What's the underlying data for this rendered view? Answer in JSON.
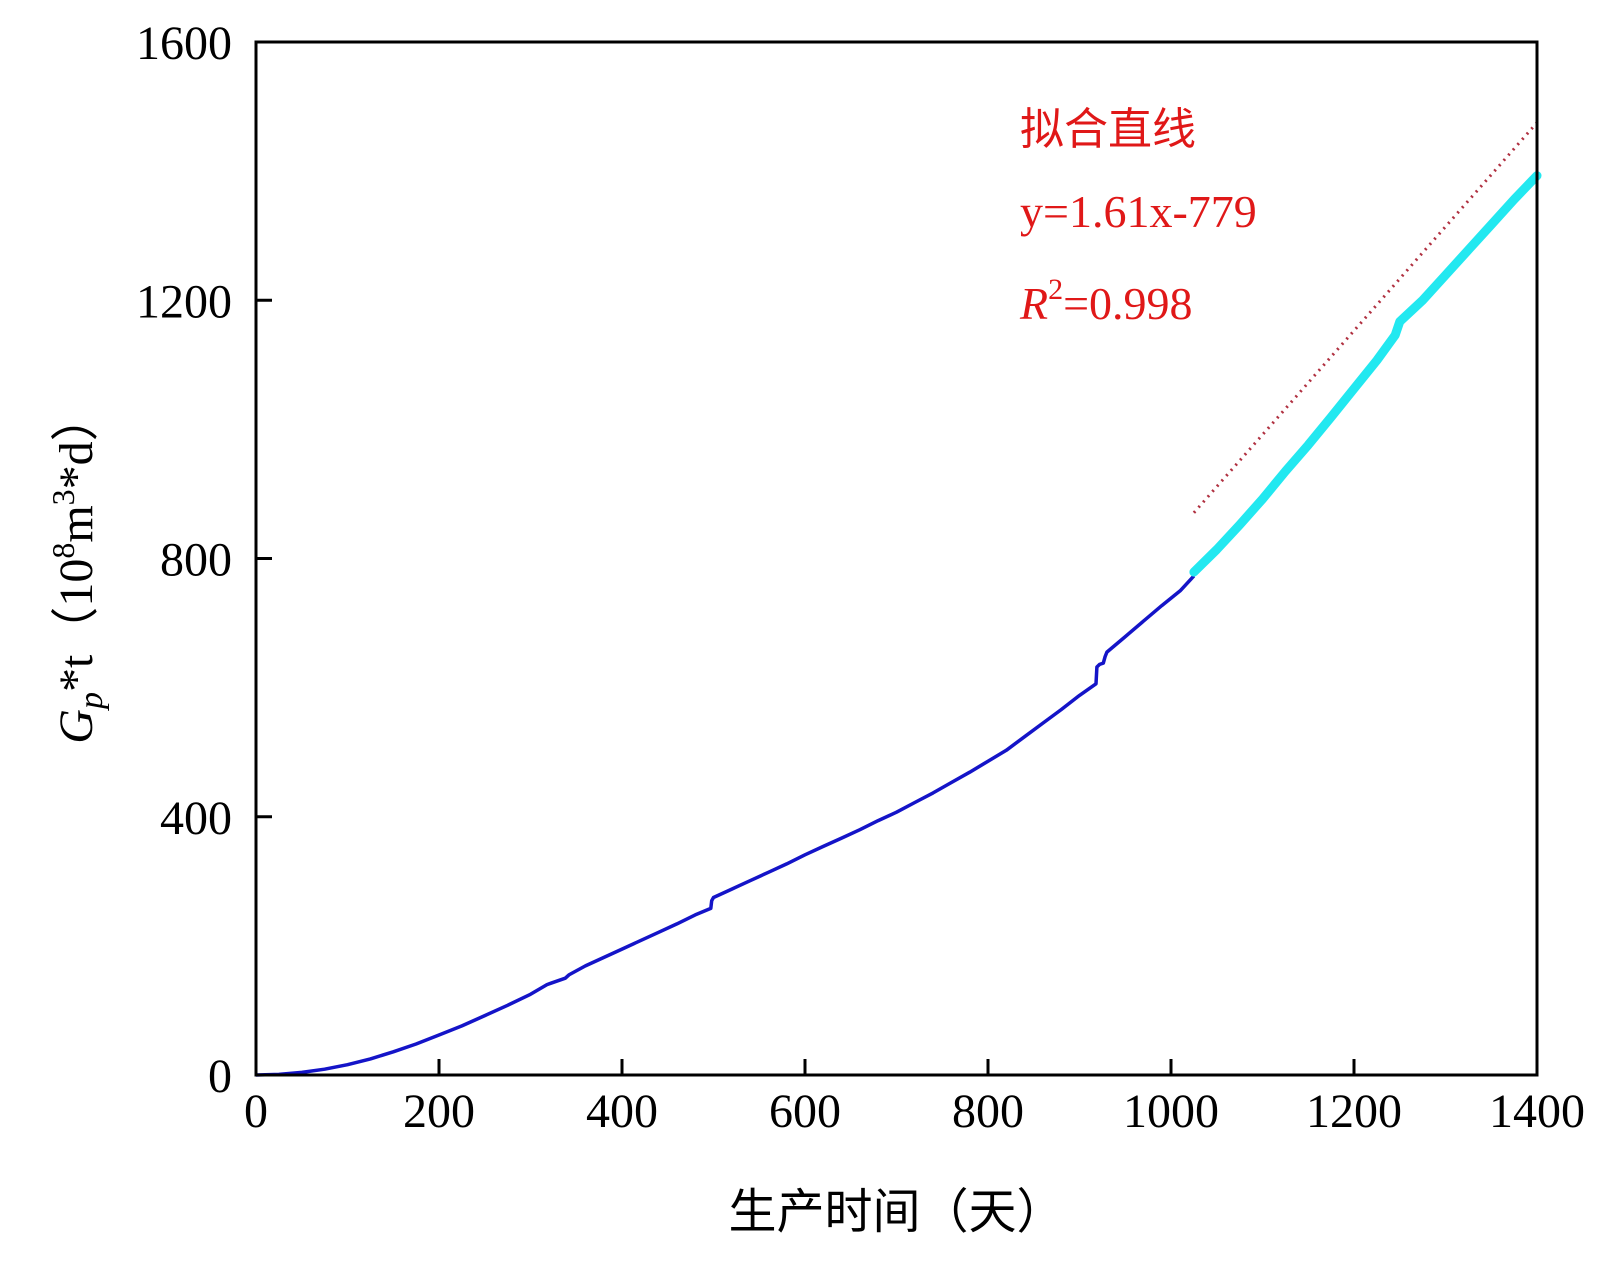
{
  "chart_data": {
    "type": "line",
    "xlabel": "生产时间（天）",
    "ylabel": {
      "G": "G",
      "p": "p",
      "rest": "*t（10",
      "exp8": "8",
      "m": "m",
      "exp3": "3",
      "tail": "*d）"
    },
    "xlim": [
      0,
      1400
    ],
    "ylim": [
      0,
      1600
    ],
    "x_ticks": [
      "0",
      "200",
      "400",
      "600",
      "800",
      "1000",
      "1200",
      "1400"
    ],
    "y_ticks": [
      "0",
      "400",
      "800",
      "1200",
      "1600"
    ],
    "grid": false,
    "annotations": {
      "title": "拟合直线",
      "equation": "y=1.61x-779",
      "r2_label": "R",
      "r2_exp": "2",
      "r2_value": "=0.998"
    },
    "colors": {
      "main": "#1414c8",
      "fit_segment": "#22e8f0",
      "fit_line": "#b03040",
      "annotation": "#e01818"
    },
    "series": [
      {
        "style": "solid",
        "x": [
          0,
          25,
          50,
          75,
          100,
          125,
          150,
          175,
          200,
          225,
          250,
          275,
          300,
          318,
          322,
          338,
          342,
          360,
          380,
          400,
          420,
          440,
          460,
          480,
          497,
          498,
          500,
          520,
          540,
          560,
          580,
          600,
          620,
          640,
          660,
          680,
          700,
          720,
          740,
          760,
          780,
          800,
          820,
          840,
          860,
          880,
          900,
          918,
          919,
          922,
          926,
          928,
          930,
          950,
          970,
          990,
          1010,
          1025
        ],
        "y": [
          0,
          1,
          4,
          9,
          16,
          25,
          36,
          48,
          62,
          76,
          92,
          108,
          125,
          140,
          142,
          150,
          155,
          169,
          182,
          195,
          208,
          221,
          234,
          248,
          258,
          270,
          275,
          288,
          301,
          314,
          327,
          341,
          354,
          367,
          380,
          394,
          407,
          422,
          437,
          453,
          469,
          486,
          503,
          524,
          545,
          566,
          588,
          606,
          632,
          636,
          638,
          648,
          655,
          679,
          703,
          727,
          750,
          773
        ]
      },
      {
        "style": "thick",
        "x": [
          1025,
          1050,
          1075,
          1100,
          1125,
          1150,
          1175,
          1200,
          1225,
          1245,
          1250,
          1275,
          1300,
          1325,
          1350,
          1375,
          1400
        ],
        "y": [
          779,
          814,
          852,
          892,
          935,
          976,
          1019,
          1063,
          1107,
          1146,
          1167,
          1200,
          1239,
          1278,
          1317,
          1356,
          1393
        ]
      },
      {
        "style": "dotted",
        "x": [
          1025,
          1400
        ],
        "y": [
          871,
          1475
        ]
      }
    ]
  }
}
